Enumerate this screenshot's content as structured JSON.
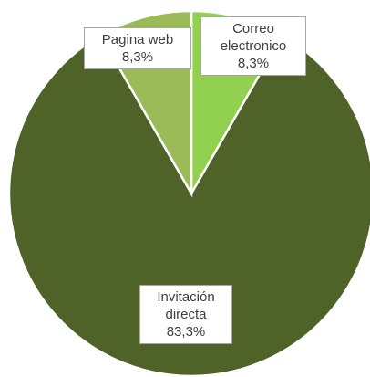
{
  "chart_data": {
    "type": "pie",
    "categories": [
      "Correo electronico",
      "Invitación directa",
      "Pagina web"
    ],
    "values": [
      8.3,
      83.3,
      8.3
    ],
    "value_labels": [
      "8,3%",
      "83,3%",
      "8,3%"
    ],
    "colors": [
      "#92d050",
      "#4f6228",
      "#9bbb59"
    ]
  }
}
